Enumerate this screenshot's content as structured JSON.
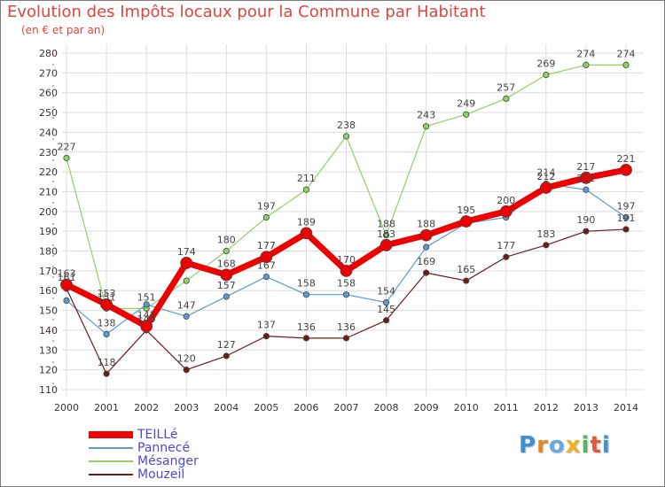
{
  "header": {
    "title": "Evolution des Impôts locaux pour la Commune par Habitant",
    "subtitle": "(en € et par an)"
  },
  "logo": {
    "text": "Proxiti"
  },
  "chart_data": {
    "type": "line",
    "title": "Evolution des Impôts locaux pour la Commune par Habitant",
    "subtitle": "(en € et par an)",
    "categories": [
      "2000",
      "2001",
      "2002",
      "2003",
      "2004",
      "2005",
      "2006",
      "2007",
      "2008",
      "2009",
      "2010",
      "2011",
      "2012",
      "2013",
      "2014"
    ],
    "ylim": [
      110,
      280
    ],
    "yticks": [
      110,
      120,
      130,
      140,
      150,
      160,
      170,
      180,
      190,
      200,
      210,
      220,
      230,
      240,
      250,
      260,
      270,
      280
    ],
    "grid": true,
    "legend_position": "bottom-left",
    "series": [
      {
        "name": "TEILLé",
        "color": "#ee0000",
        "values": [
          163,
          153,
          142,
          174,
          168,
          177,
          189,
          170,
          183,
          188,
          195,
          200,
          212,
          217,
          221
        ]
      },
      {
        "name": "Pannecé",
        "color": "#5b9bd5",
        "values": [
          155,
          138,
          153,
          147,
          157,
          167,
          158,
          158,
          154,
          182,
          194,
          197,
          214,
          211,
          197
        ]
      },
      {
        "name": "Mésanger",
        "color": "#8dd35f",
        "values": [
          227,
          151,
          151,
          165,
          180,
          197,
          211,
          238,
          188,
          243,
          249,
          257,
          269,
          274,
          274
        ]
      },
      {
        "name": "Mouzeil",
        "color": "#6b1d1d",
        "values": [
          161,
          118,
          140,
          120,
          127,
          137,
          136,
          136,
          145,
          169,
          165,
          177,
          183,
          190,
          191
        ]
      }
    ],
    "data_labels": {
      "TEILLé": [
        "163",
        "153",
        "142",
        "174",
        "168",
        "177",
        "189",
        "170",
        "183",
        "188",
        "195",
        "200",
        "212",
        "217",
        "221"
      ],
      "Pannecé": [
        "",
        "138",
        "",
        "147",
        "157",
        "167",
        "158",
        "158",
        "154",
        "",
        "",
        "",
        "214",
        "211",
        "197"
      ],
      "Mésanger": [
        "227",
        "151",
        "151",
        "",
        "180",
        "197",
        "211",
        "238",
        "188",
        "243",
        "249",
        "257",
        "269",
        "274",
        "274"
      ],
      "Mouzeil": [
        "161",
        "118",
        "140",
        "120",
        "127",
        "137",
        "136",
        "136",
        "145",
        "169",
        "165",
        "177",
        "183",
        "190",
        "191"
      ]
    }
  }
}
